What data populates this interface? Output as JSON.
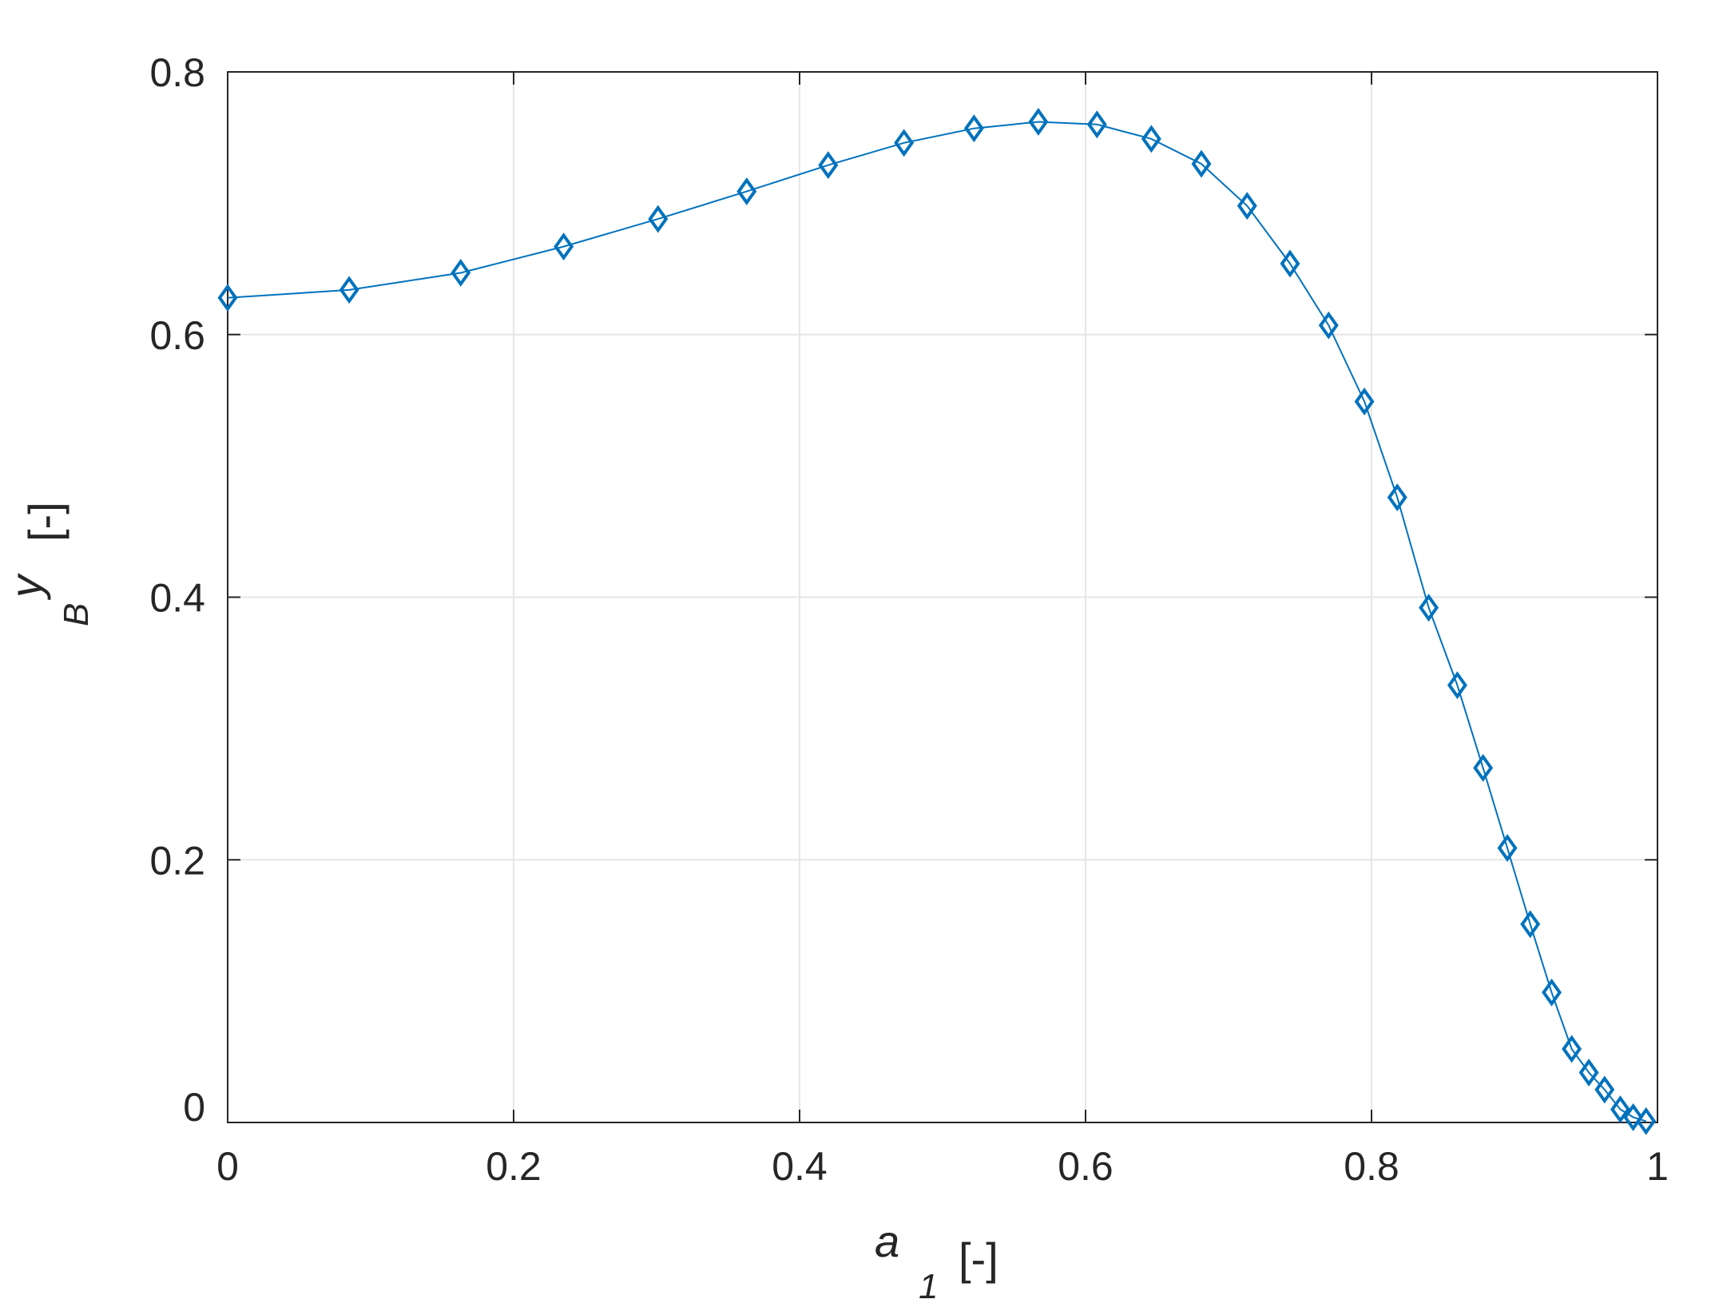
{
  "chart_data": {
    "type": "line",
    "title": "",
    "xlabel": {
      "main": "a",
      "sub": "1",
      "unit": "[-]"
    },
    "ylabel": {
      "main": "y",
      "sub": "B",
      "unit": "[-]"
    },
    "xlim": [
      0,
      1
    ],
    "ylim": [
      0,
      0.8
    ],
    "xticks": [
      0,
      0.2,
      0.4,
      0.6,
      0.8,
      1
    ],
    "xtick_labels": [
      "0",
      "0.2",
      "0.4",
      "0.6",
      "0.8",
      "1"
    ],
    "yticks": [
      0,
      0.2,
      0.4,
      0.6,
      0.8
    ],
    "ytick_labels": [
      "0",
      "0.2",
      "0.4",
      "0.6",
      "0.8"
    ],
    "grid": true,
    "series": [
      {
        "marker": "diamond",
        "color": "#0072bd",
        "x": [
          0,
          0.085,
          0.163,
          0.235,
          0.301,
          0.363,
          0.42,
          0.473,
          0.522,
          0.567,
          0.608,
          0.646,
          0.681,
          0.713,
          0.743,
          0.77,
          0.795,
          0.818,
          0.84,
          0.86,
          0.878,
          0.895,
          0.911,
          0.926,
          0.94,
          0.952,
          0.963,
          0.974,
          0.983,
          0.992
        ],
        "y": [
          0.628,
          0.634,
          0.647,
          0.667,
          0.688,
          0.709,
          0.729,
          0.746,
          0.757,
          0.762,
          0.76,
          0.749,
          0.73,
          0.698,
          0.654,
          0.607,
          0.549,
          0.476,
          0.392,
          0.333,
          0.27,
          0.209,
          0.151,
          0.099,
          0.056,
          0.038,
          0.025,
          0.01,
          0.004,
          0.001
        ]
      }
    ]
  },
  "colors": {
    "series": "#0072bd",
    "grid": "#e6e6e6",
    "axis": "#262626"
  }
}
